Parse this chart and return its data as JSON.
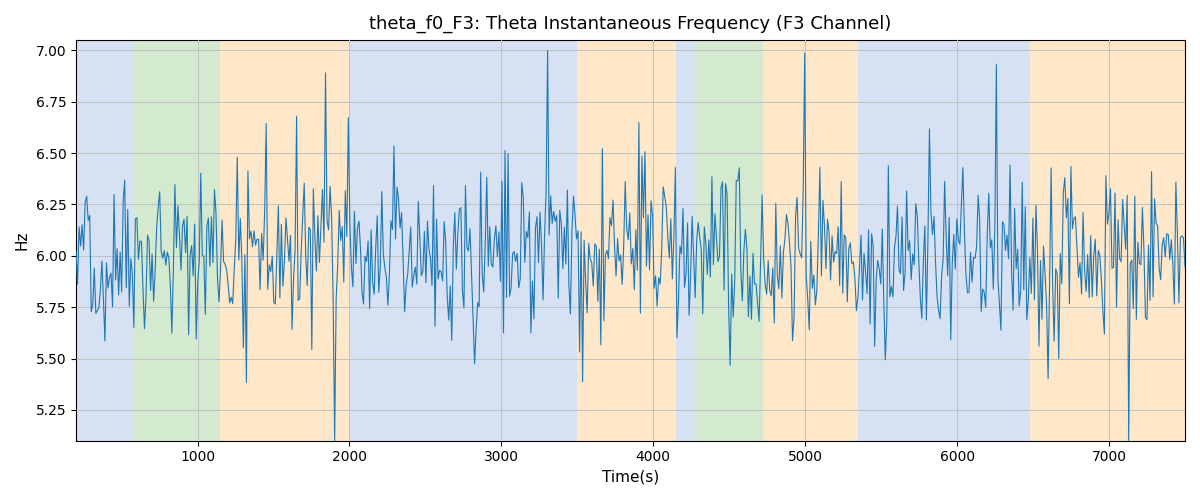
{
  "title": "theta_f0_F3: Theta Instantaneous Frequency (F3 Channel)",
  "xlabel": "Time(s)",
  "ylabel": "Hz",
  "ylim": [
    5.1,
    7.05
  ],
  "xlim": [
    200,
    7500
  ],
  "yticks": [
    5.25,
    5.5,
    5.75,
    6.0,
    6.25,
    6.5,
    6.75,
    7.0
  ],
  "xticks": [
    1000,
    2000,
    3000,
    4000,
    5000,
    6000,
    7000
  ],
  "line_color": "#1f77b4",
  "line_width": 0.8,
  "seed": 42,
  "n_points": 730,
  "time_start": 200,
  "time_end": 7500,
  "background_bands": [
    {
      "xmin": 200,
      "xmax": 580,
      "color": "#aec6e8",
      "alpha": 0.5
    },
    {
      "xmin": 580,
      "xmax": 1150,
      "color": "#a8d5a2",
      "alpha": 0.5
    },
    {
      "xmin": 1150,
      "xmax": 2000,
      "color": "#ffd59e",
      "alpha": 0.55
    },
    {
      "xmin": 2000,
      "xmax": 3500,
      "color": "#aec6e8",
      "alpha": 0.5
    },
    {
      "xmin": 3500,
      "xmax": 4150,
      "color": "#ffd59e",
      "alpha": 0.55
    },
    {
      "xmin": 4150,
      "xmax": 4280,
      "color": "#aec6e8",
      "alpha": 0.5
    },
    {
      "xmin": 4280,
      "xmax": 4720,
      "color": "#a8d5a2",
      "alpha": 0.5
    },
    {
      "xmin": 4720,
      "xmax": 5350,
      "color": "#ffd59e",
      "alpha": 0.55
    },
    {
      "xmin": 5350,
      "xmax": 6480,
      "color": "#aec6e8",
      "alpha": 0.5
    },
    {
      "xmin": 6480,
      "xmax": 7500,
      "color": "#ffd59e",
      "alpha": 0.55
    }
  ],
  "figure_facecolor": "#ffffff",
  "axes_facecolor": "#ffffff",
  "grid_color": "#c0c0c0",
  "title_fontsize": 13,
  "label_fontsize": 11,
  "tick_fontsize": 10
}
